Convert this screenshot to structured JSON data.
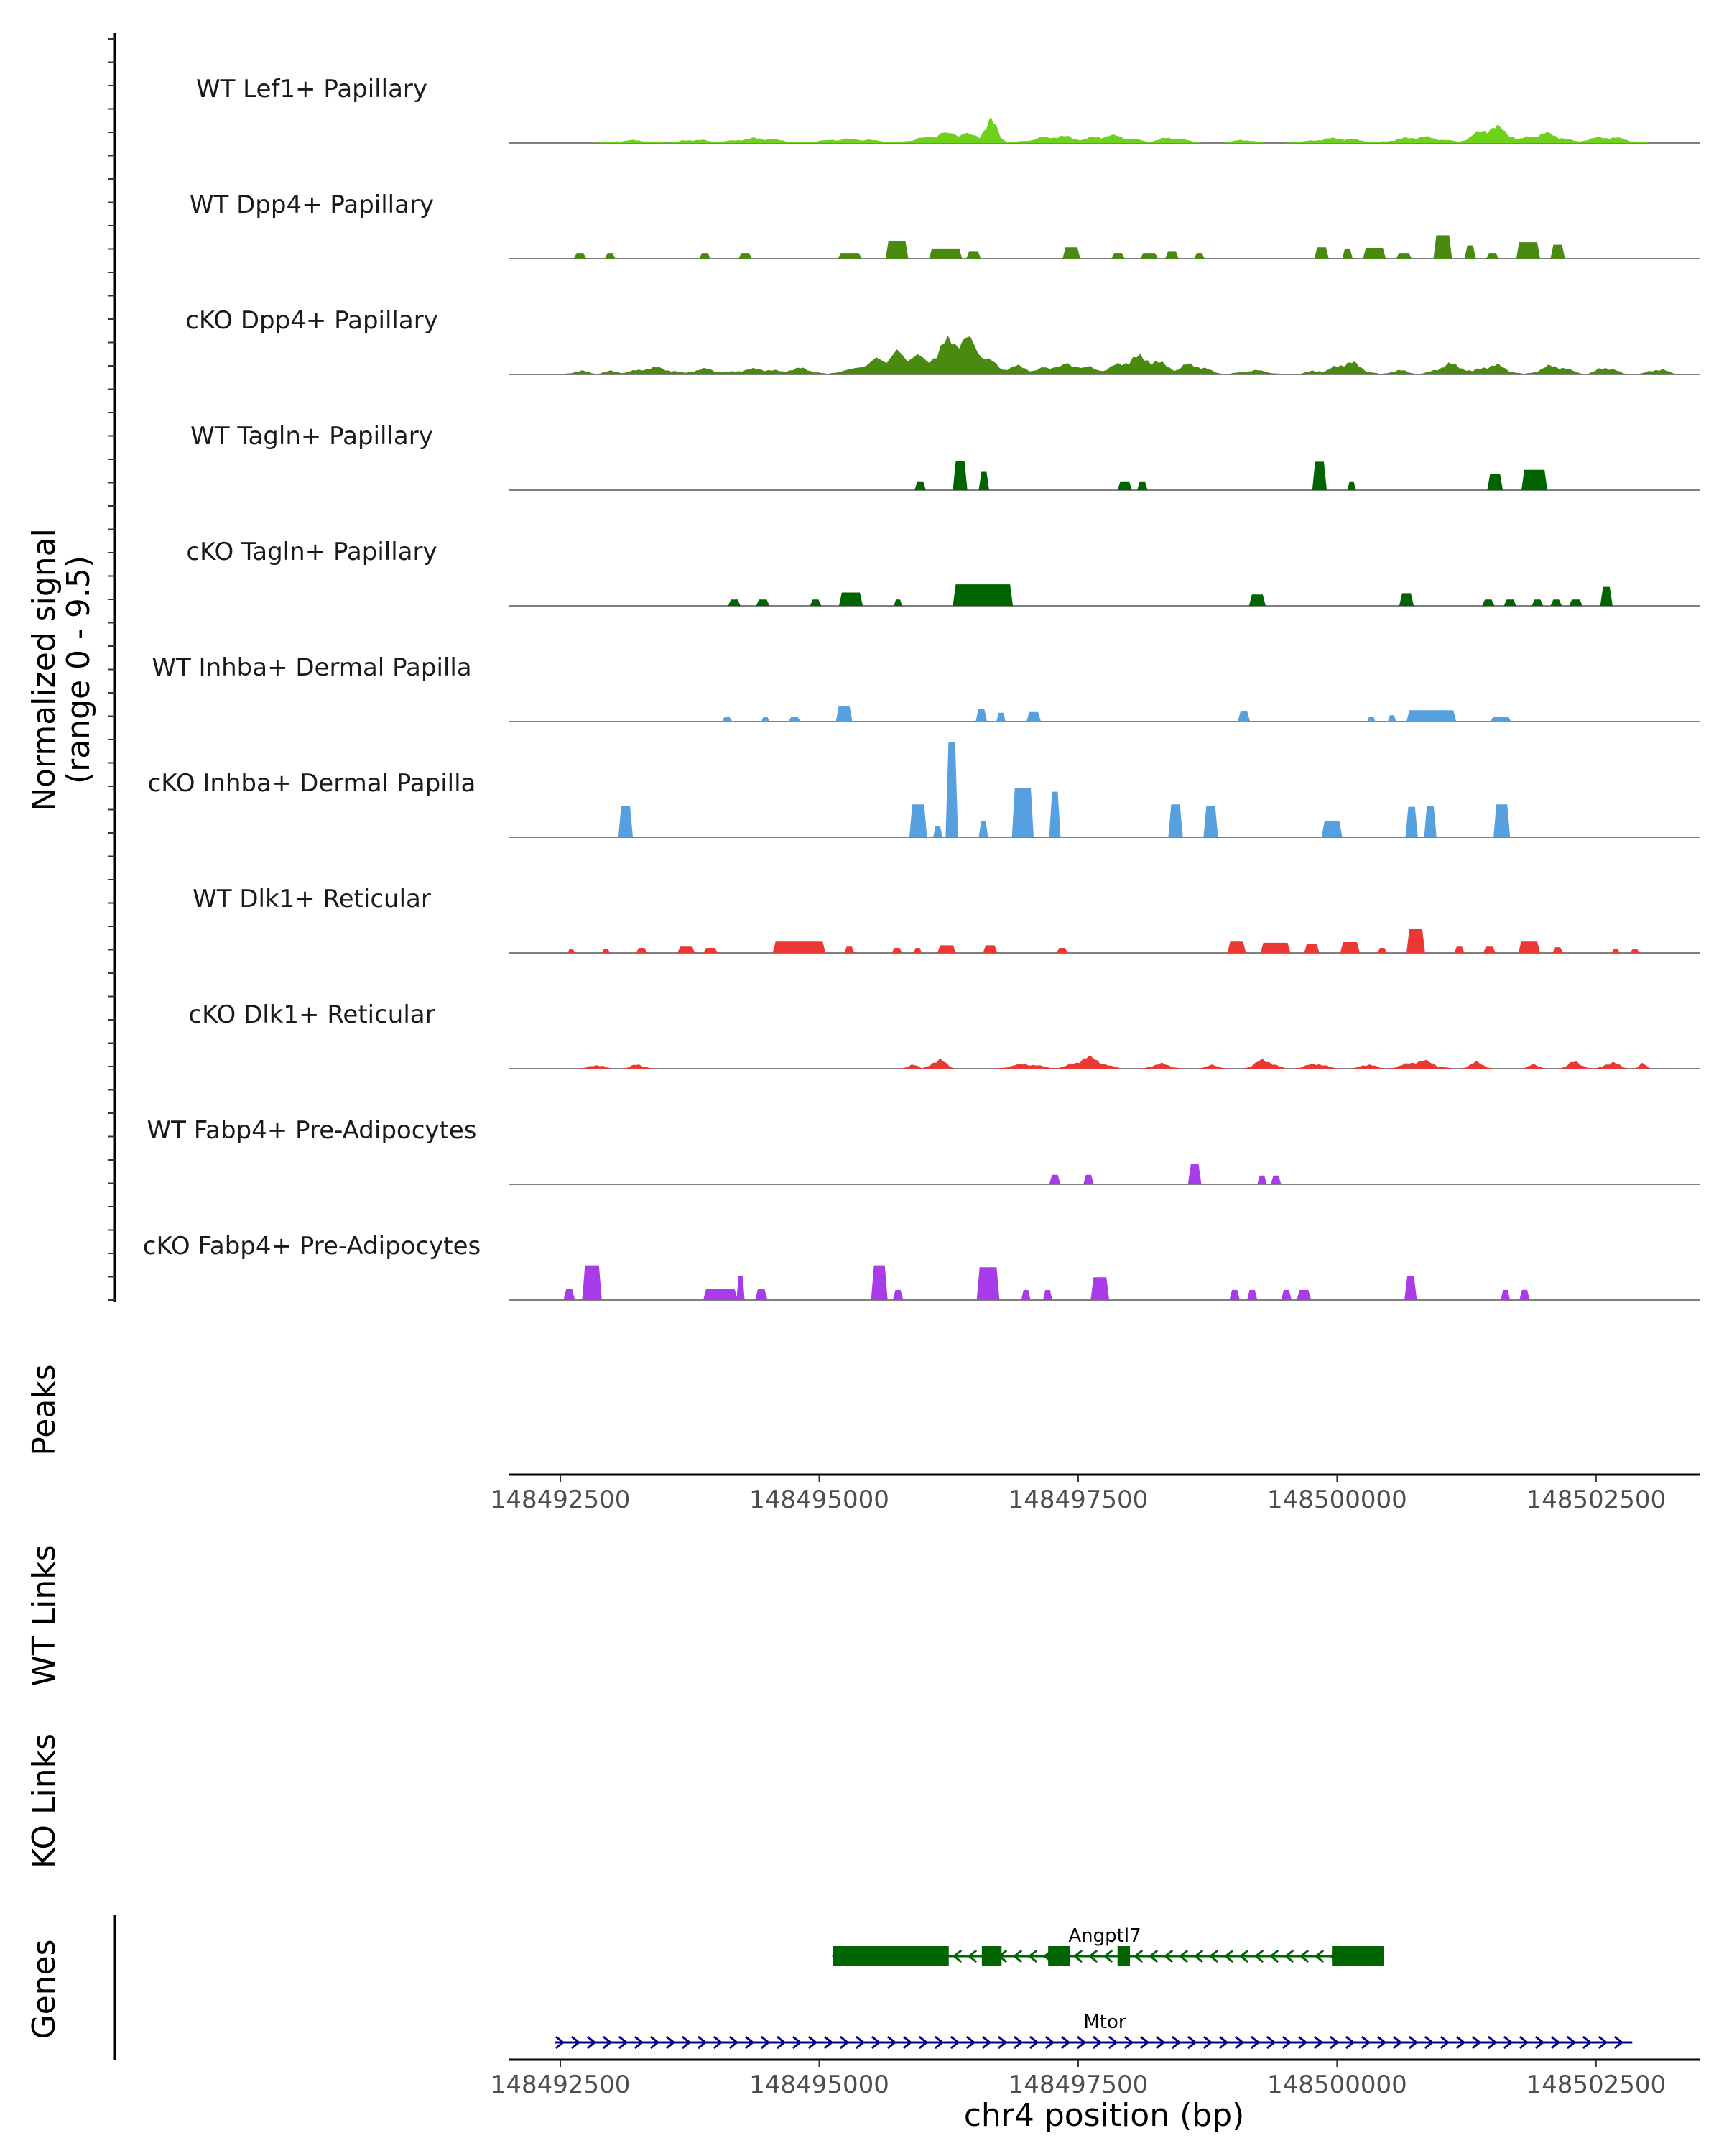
{
  "chart_data": {
    "type": "area",
    "title": "",
    "region": {
      "chrom": "chr4",
      "start": 148492000,
      "end": 148503500
    },
    "xlabel": "chr4 position (bp)",
    "xticks": [
      148492500,
      148495000,
      148497500,
      148500000,
      148502500
    ],
    "xtick_labels": [
      "148492500",
      "148495000",
      "148497500",
      "148500000",
      "148502500"
    ],
    "coverage": {
      "ylabel_line1": "Normalized signal",
      "ylabel_line2": "(range 0 - 9.5)",
      "ylim": [
        0,
        9.5
      ],
      "tracks": [
        {
          "name": "WT Lef1+ Papillary",
          "color": "#6ed21c",
          "type": "smooth",
          "peaks": [
            [
              148493200,
              0.4,
              400
            ],
            [
              148493800,
              0.5,
              300
            ],
            [
              148494400,
              0.7,
              500
            ],
            [
              148495300,
              0.6,
              600
            ],
            [
              148496300,
              1.5,
              600
            ],
            [
              148496650,
              3.2,
              160
            ],
            [
              148497300,
              1.0,
              500
            ],
            [
              148497800,
              1.1,
              500
            ],
            [
              148498400,
              0.8,
              300
            ],
            [
              148499100,
              0.5,
              200
            ],
            [
              148500000,
              0.7,
              500
            ],
            [
              148500800,
              0.9,
              500
            ],
            [
              148501500,
              2.4,
              350
            ],
            [
              148502000,
              1.4,
              400
            ],
            [
              148502600,
              0.9,
              400
            ]
          ]
        },
        {
          "name": "WT Dpp4+ Papillary",
          "color": "#4a8a10",
          "type": "blocky",
          "peaks": [
            [
              148492630,
              148492750,
              0.9
            ],
            [
              148492930,
              148493030,
              0.9
            ],
            [
              148493840,
              148493950,
              0.9
            ],
            [
              148494220,
              148494350,
              0.9
            ],
            [
              148495180,
              148495410,
              0.9
            ],
            [
              148495640,
              148495860,
              2.8
            ],
            [
              148496060,
              148496380,
              1.6
            ],
            [
              148496420,
              148496560,
              1.2
            ],
            [
              148497350,
              148497520,
              1.8
            ],
            [
              148497820,
              148497950,
              0.9
            ],
            [
              148498100,
              148498270,
              0.9
            ],
            [
              148498340,
              148498470,
              1.2
            ],
            [
              148498620,
              148498720,
              0.9
            ],
            [
              148499780,
              148499920,
              1.8
            ],
            [
              148500050,
              148500150,
              1.6
            ],
            [
              148500250,
              148500470,
              1.7
            ],
            [
              148500570,
              148500720,
              0.9
            ],
            [
              148500930,
              148501110,
              3.7
            ],
            [
              148501230,
              148501340,
              2.1
            ],
            [
              148501440,
              148501560,
              0.9
            ],
            [
              148501730,
              148501960,
              2.6
            ],
            [
              148502060,
              148502200,
              2.2
            ]
          ]
        },
        {
          "name": "cKO Dpp4+ Papillary",
          "color": "#4a8a10",
          "type": "smooth",
          "peaks": [
            [
              148492700,
              0.5,
              200
            ],
            [
              148493000,
              0.5,
              200
            ],
            [
              148493400,
              1.0,
              400
            ],
            [
              148493900,
              0.8,
              300
            ],
            [
              148494400,
              0.8,
              500
            ],
            [
              148494800,
              0.9,
              300
            ],
            [
              148495800,
              3.0,
              700
            ],
            [
              148496350,
              5.5,
              500
            ],
            [
              148496900,
              1.2,
              300
            ],
            [
              148497400,
              1.4,
              600
            ],
            [
              148498100,
              2.5,
              500
            ],
            [
              148498600,
              1.5,
              300
            ],
            [
              148499200,
              0.6,
              300
            ],
            [
              148499800,
              0.6,
              200
            ],
            [
              148500100,
              1.8,
              300
            ],
            [
              148500600,
              0.6,
              200
            ],
            [
              148501100,
              1.5,
              300
            ],
            [
              148501500,
              1.4,
              300
            ],
            [
              148502100,
              1.3,
              300
            ],
            [
              148502600,
              1.1,
              200
            ],
            [
              148503100,
              0.8,
              200
            ]
          ]
        },
        {
          "name": "WT Tagln+ Papillary",
          "color": "#006400",
          "type": "blocky",
          "peaks": [
            [
              148495920,
              148496030,
              1.4
            ],
            [
              148496290,
              148496430,
              4.6
            ],
            [
              148496540,
              148496640,
              2.9
            ],
            [
              148497880,
              148498020,
              1.4
            ],
            [
              148498070,
              148498170,
              1.4
            ],
            [
              148499760,
              148499900,
              4.5
            ],
            [
              148500100,
              148500180,
              1.4
            ],
            [
              148501450,
              148501600,
              2.6
            ],
            [
              148501780,
              148502030,
              3.2
            ]
          ]
        },
        {
          "name": "cKO Tagln+ Papillary",
          "color": "#006400",
          "type": "blocky",
          "peaks": [
            [
              148494120,
              148494240,
              1.0
            ],
            [
              148494390,
              148494520,
              1.0
            ],
            [
              148494910,
              148495020,
              1.0
            ],
            [
              148495190,
              148495420,
              2.1
            ],
            [
              148495720,
              148495800,
              1.0
            ],
            [
              148496290,
              148496870,
              3.4
            ],
            [
              148499150,
              148499310,
              1.8
            ],
            [
              148500600,
              148500740,
              2.0
            ],
            [
              148501400,
              148501520,
              1.0
            ],
            [
              148501610,
              148501730,
              1.0
            ],
            [
              148501880,
              148501990,
              1.0
            ],
            [
              148502060,
              148502170,
              1.0
            ],
            [
              148502240,
              148502370,
              1.0
            ],
            [
              148502540,
              148502660,
              3.0
            ]
          ]
        },
        {
          "name": "WT Inhba+ Dermal Papilla",
          "color": "#56a0e0",
          "type": "blocky",
          "peaks": [
            [
              148494060,
              148494160,
              0.7
            ],
            [
              148494440,
              148494520,
              0.7
            ],
            [
              148494700,
              148494820,
              0.7
            ],
            [
              148495160,
              148495320,
              2.4
            ],
            [
              148496510,
              148496620,
              2.0
            ],
            [
              148496710,
              148496800,
              1.4
            ],
            [
              148497000,
              148497140,
              1.5
            ],
            [
              148499040,
              148499160,
              1.6
            ],
            [
              148500290,
              148500370,
              0.8
            ],
            [
              148500490,
              148500570,
              1.0
            ],
            [
              148500670,
              148501150,
              1.8
            ],
            [
              148501480,
              148501680,
              0.8
            ]
          ]
        },
        {
          "name": "cKO Inhba+ Dermal Papilla",
          "color": "#56a0e0",
          "type": "blocky",
          "peaks": [
            [
              148493060,
              148493200,
              5.0
            ],
            [
              148495870,
              148496040,
              5.2
            ],
            [
              148496100,
              148496190,
              1.8
            ],
            [
              148496220,
              148496340,
              15.0
            ],
            [
              148496540,
              148496630,
              2.5
            ],
            [
              148496860,
              148497070,
              7.8
            ],
            [
              148497220,
              148497330,
              7.2
            ],
            [
              148498370,
              148498510,
              5.2
            ],
            [
              148498710,
              148498850,
              5.0
            ],
            [
              148499850,
              148500050,
              2.5
            ],
            [
              148500660,
              148500780,
              4.8
            ],
            [
              148500840,
              148500960,
              5.0
            ],
            [
              148501510,
              148501670,
              5.2
            ]
          ]
        },
        {
          "name": "WT Dlk1+ Reticular",
          "color": "#ec3832",
          "type": "blocky",
          "peaks": [
            [
              148492570,
              148492640,
              0.6
            ],
            [
              148492900,
              148492980,
              0.6
            ],
            [
              148493230,
              148493340,
              0.8
            ],
            [
              148493630,
              148493800,
              1.0
            ],
            [
              148493880,
              148494020,
              0.8
            ],
            [
              148494550,
              148495060,
              1.8
            ],
            [
              148495240,
              148495340,
              1.0
            ],
            [
              148495700,
              148495800,
              0.8
            ],
            [
              148495910,
              148495990,
              0.8
            ],
            [
              148496140,
              148496320,
              1.2
            ],
            [
              148496580,
              148496720,
              1.2
            ],
            [
              148497290,
              148497400,
              0.8
            ],
            [
              148498940,
              148499120,
              1.8
            ],
            [
              148499260,
              148499550,
              1.6
            ],
            [
              148499680,
              148499830,
              1.4
            ],
            [
              148500030,
              148500220,
              1.7
            ],
            [
              148500390,
              148500480,
              0.8
            ],
            [
              148500670,
              148500850,
              3.8
            ],
            [
              148501130,
              148501230,
              1.0
            ],
            [
              148501410,
              148501530,
              1.0
            ],
            [
              148501750,
              148501960,
              1.8
            ],
            [
              148502080,
              148502180,
              0.9
            ],
            [
              148502650,
              148502730,
              0.6
            ],
            [
              148502830,
              148502920,
              0.6
            ]
          ]
        },
        {
          "name": "cKO Dlk1+ Reticular",
          "color": "#ec3832",
          "type": "smooth",
          "peaks": [
            [
              148492850,
              0.6,
              150
            ],
            [
              148493250,
              0.6,
              150
            ],
            [
              148495900,
              0.7,
              100
            ],
            [
              148496150,
              1.4,
              150
            ],
            [
              148497000,
              0.7,
              300
            ],
            [
              148497600,
              1.6,
              300
            ],
            [
              148498300,
              0.7,
              200
            ],
            [
              148498800,
              0.5,
              150
            ],
            [
              148499300,
              1.3,
              200
            ],
            [
              148499800,
              0.8,
              200
            ],
            [
              148500300,
              0.7,
              150
            ],
            [
              148500800,
              1.2,
              300
            ],
            [
              148501350,
              0.9,
              150
            ],
            [
              148501900,
              0.8,
              100
            ],
            [
              148502300,
              1.0,
              150
            ],
            [
              148502650,
              1.0,
              150
            ],
            [
              148502950,
              0.7,
              80
            ]
          ]
        },
        {
          "name": "WT Fabp4+ Pre-Adipocytes",
          "color": "#a83ce8",
          "type": "blocky",
          "peaks": [
            [
              148497220,
              148497330,
              1.5
            ],
            [
              148497550,
              148497650,
              1.5
            ],
            [
              148498560,
              148498690,
              3.2
            ],
            [
              148499230,
              148499320,
              1.4
            ],
            [
              148499360,
              148499460,
              1.4
            ]
          ]
        },
        {
          "name": "cKO Fabp4+ Pre-Adipocytes",
          "color": "#a83ce8",
          "type": "blocky",
          "peaks": [
            [
              148492530,
              148492640,
              1.8
            ],
            [
              148492710,
              148492900,
              5.5
            ],
            [
              148493880,
              148494210,
              1.8
            ],
            [
              148494200,
              148494280,
              3.8
            ],
            [
              148494380,
              148494500,
              1.7
            ],
            [
              148495500,
              148495660,
              5.5
            ],
            [
              148495710,
              148495810,
              1.6
            ],
            [
              148496520,
              148496740,
              5.2
            ],
            [
              148496950,
              148497040,
              1.6
            ],
            [
              148497160,
              148497250,
              1.6
            ],
            [
              148497620,
              148497800,
              3.6
            ],
            [
              148498960,
              148499060,
              1.6
            ],
            [
              148499130,
              148499230,
              1.6
            ],
            [
              148499460,
              148499560,
              1.6
            ],
            [
              148499610,
              148499750,
              1.6
            ],
            [
              148500650,
              148500770,
              3.8
            ],
            [
              148501580,
              148501670,
              1.6
            ],
            [
              148501760,
              148501860,
              1.6
            ]
          ]
        }
      ]
    },
    "peaks_track": {
      "label": "Peaks",
      "intervals": []
    },
    "links_tracks": [
      {
        "label": "WT Links",
        "links": []
      },
      {
        "label": "KO Links",
        "links": []
      }
    ],
    "genes_track": {
      "label": "Genes",
      "genes": [
        {
          "name": "Angptl7",
          "strand": "-",
          "color": "#006400",
          "start": 148495130,
          "end": 148500450,
          "exons": [
            [
              148495130,
              148496250
            ],
            [
              148496570,
              148496760
            ],
            [
              148497210,
              148497420
            ],
            [
              148497880,
              148498000
            ],
            [
              148499950,
              148500450
            ]
          ]
        },
        {
          "name": "Mtor",
          "strand": "+",
          "color": "#00008b",
          "start": 148492450,
          "end": 148502850,
          "exons": []
        }
      ]
    }
  }
}
